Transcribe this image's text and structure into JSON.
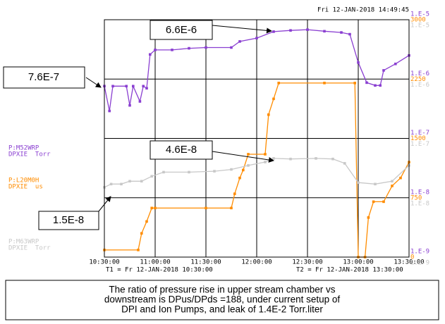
{
  "chart_data": {
    "type": "line",
    "timestamp": "Fri 12-JAN-2018 14:49:45",
    "xlim": [
      "10:30:00",
      "13:30:00"
    ],
    "xticks": [
      "10:30:00",
      "11:00:00",
      "11:30:00",
      "12:00:00",
      "12:30:00",
      "13:00:00",
      "13:30:00"
    ],
    "t1_label": "T1 = Fr 12-JAN-2018 10:30:00",
    "t2_label": "T2 = Fr 12-JAN-2018 13:30:00",
    "grid": true,
    "axes": [
      {
        "color": "#8a3fd1",
        "scale": "log",
        "lim": [
          1e-09,
          1e-05
        ],
        "ticks": [
          {
            "value": 1e-09,
            "label": "1.E-9"
          },
          {
            "value": 1e-08,
            "label": "1.E-8"
          },
          {
            "value": 1e-07,
            "label": "1.E-7"
          },
          {
            "value": 1e-06,
            "label": "1.E-6"
          },
          {
            "value": 1e-05,
            "label": "1.E-5"
          }
        ]
      },
      {
        "color": "#ff8c00",
        "scale": "linear",
        "lim": [
          0,
          3000
        ],
        "ticks": [
          0,
          750,
          1500,
          2250,
          3000
        ]
      },
      {
        "color": "#c8c8c8",
        "scale": "log",
        "lim": [
          1e-09,
          1e-05
        ],
        "ticks": [
          {
            "value": 1e-09,
            "label": "1.E-9"
          },
          {
            "value": 1e-08,
            "label": "1.E-8"
          },
          {
            "value": 1e-07,
            "label": "1.E-7"
          },
          {
            "value": 1e-06,
            "label": "1.E-6"
          },
          {
            "value": 1e-05,
            "label": "1.E-5"
          }
        ]
      }
    ],
    "series": [
      {
        "name": "P:M52WRP",
        "units": "DPXIE  Torr",
        "color": "#8a3fd1",
        "axis": 0,
        "x": [
          "10:30:00",
          "10:33:00",
          "10:35:00",
          "10:43:00",
          "10:45:00",
          "10:47:00",
          "10:51:00",
          "10:53:00",
          "10:55:00",
          "10:57:00",
          "11:00:00",
          "11:10:00",
          "11:20:00",
          "11:30:00",
          "11:45:00",
          "11:50:00",
          "12:00:00",
          "12:10:00",
          "12:20:00",
          "12:30:00",
          "12:40:00",
          "12:50:00",
          "12:55:00",
          "13:00:00",
          "13:05:00",
          "13:10:00",
          "13:13:00",
          "13:15:00",
          "13:22:00",
          "13:30:00"
        ],
        "values": [
          7.6e-07,
          2.9e-07,
          7.6e-07,
          7.6e-07,
          3.6e-07,
          7.6e-07,
          4.2e-07,
          7.6e-07,
          7e-07,
          2.6e-06,
          3.1e-06,
          3.1e-06,
          3.3e-06,
          3.4e-06,
          3.4e-06,
          4.3e-06,
          4.9e-06,
          6.3e-06,
          6.6e-06,
          6.8e-06,
          6.4e-06,
          6.1e-06,
          5.7e-06,
          1.9e-06,
          8.7e-07,
          7.8e-07,
          7.8e-07,
          1.4e-06,
          1.8e-06,
          2.5e-06
        ]
      },
      {
        "name": "P:L20M0H",
        "units": "DPXIE  us",
        "color": "#ff8c00",
        "axis": 1,
        "x": [
          "10:30:00",
          "10:50:00",
          "10:52:00",
          "10:55:00",
          "10:58:00",
          "11:00:00",
          "11:30:00",
          "11:45:00",
          "11:47:00",
          "11:50:00",
          "11:52:00",
          "11:55:00",
          "12:05:00",
          "12:07:00",
          "12:10:00",
          "12:13:00",
          "12:40:00",
          "12:58:00",
          "13:00:00",
          "13:04:00",
          "13:06:00",
          "13:09:00",
          "13:15:00",
          "13:20:00",
          "13:25:00",
          "13:30:00"
        ],
        "values": [
          90,
          90,
          300,
          450,
          620,
          620,
          620,
          620,
          800,
          1000,
          1100,
          1300,
          1300,
          1800,
          2000,
          2200,
          2200,
          2200,
          0,
          0,
          500,
          700,
          700,
          900,
          1000,
          1200
        ]
      },
      {
        "name": "P:M63WRP",
        "units": "DPXIE  Torr",
        "color": "#c8c8c8",
        "axis": 2,
        "x": [
          "10:30:00",
          "10:34:00",
          "10:40:00",
          "10:45:00",
          "10:52:00",
          "10:58:00",
          "11:05:00",
          "11:20:00",
          "11:35:00",
          "11:45:00",
          "11:55:00",
          "12:05:00",
          "12:10:00",
          "12:20:00",
          "12:35:00",
          "12:45:00",
          "12:52:00",
          "13:00:00",
          "13:10:00",
          "13:20:00",
          "13:30:00"
        ],
        "values": [
          1.5e-08,
          1.7e-08,
          1.7e-08,
          1.9e-08,
          1.9e-08,
          2.3e-08,
          2.7e-08,
          2.7e-08,
          2.8e-08,
          3e-08,
          3.5e-08,
          4e-08,
          4.6e-08,
          4.5e-08,
          4.6e-08,
          4.5e-08,
          3.8e-08,
          1.8e-08,
          1.7e-08,
          1.9e-08,
          3.5e-08
        ]
      }
    ],
    "annotations": [
      "6.6E-6",
      "7.6E-7",
      "4.6E-8",
      "1.5E-8"
    ],
    "caption": [
      "The ratio of pressure rise in upper stream chamber vs",
      "downstream is  DPus/DPds =188, under current setup of",
      "DPI and Ion Pumps, and leak of  1.4E-2 Torr.liter"
    ]
  }
}
